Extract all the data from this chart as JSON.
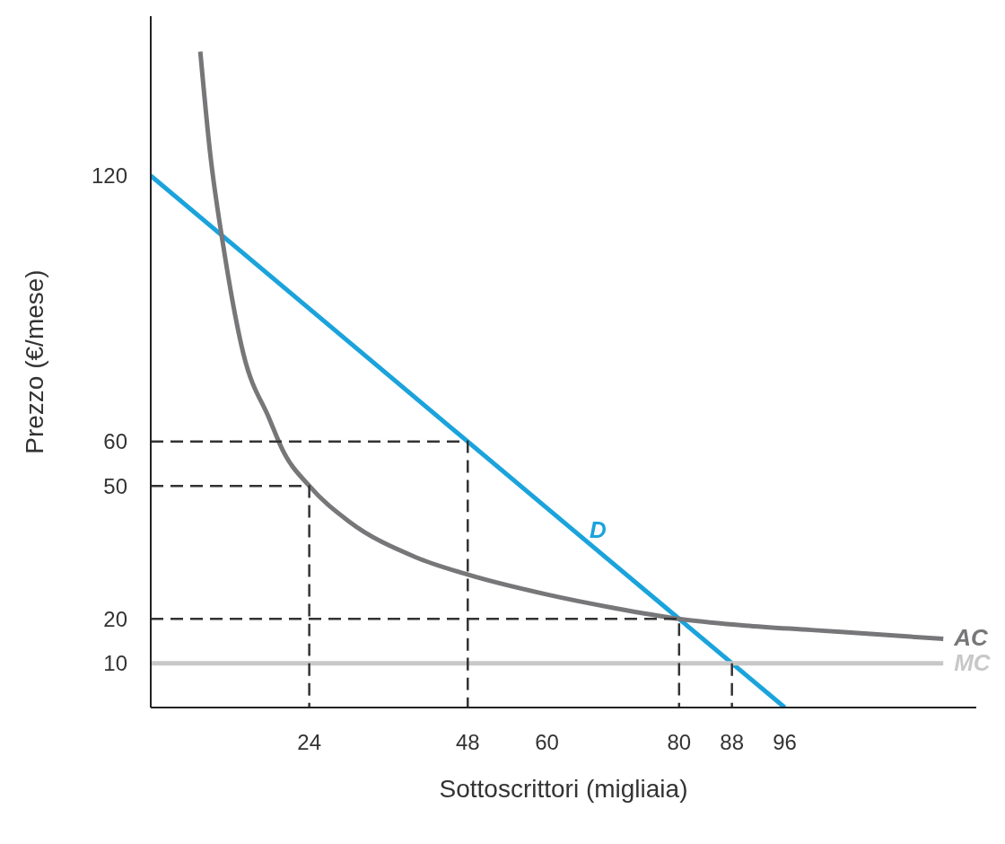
{
  "chart_data": {
    "type": "line",
    "xlabel": "Sottoscrittori (migliaia)",
    "ylabel": "Prezzo (€/mese)",
    "xlim": [
      0,
      125
    ],
    "ylim": [
      0,
      156
    ],
    "xticks": [
      24,
      48,
      60,
      80,
      88,
      96
    ],
    "yticks": [
      10,
      20,
      50,
      60,
      120
    ],
    "grid": false,
    "legend": false,
    "marker": "none",
    "series": [
      {
        "name": "D",
        "color": "#1ba3dc",
        "x": [
          0,
          64,
          96
        ],
        "values": [
          120,
          40,
          0
        ]
      },
      {
        "name": "AC",
        "color": "#77777a",
        "x": [
          7.5,
          9,
          11,
          14,
          18,
          20,
          24,
          30,
          40,
          48,
          60,
          70,
          80,
          90,
          100,
          110,
          120
        ],
        "values": [
          148,
          125,
          104,
          80,
          65,
          58,
          50,
          42,
          34,
          30,
          25.5,
          22.5,
          20,
          18.5,
          17.5,
          16.5,
          15.5
        ]
      },
      {
        "name": "MC",
        "color": "#c8c8c8",
        "x": [
          0,
          120
        ],
        "values": [
          10,
          10
        ]
      },
      {
        "color": "#333333",
        "line_style": "dashed",
        "x": [
          0,
          48,
          48
        ],
        "values": [
          60,
          60,
          0
        ]
      },
      {
        "color": "#333333",
        "line_style": "dashed",
        "x": [
          0,
          24,
          24
        ],
        "values": [
          50,
          50,
          0
        ]
      },
      {
        "color": "#333333",
        "line_style": "dashed",
        "x": [
          0,
          80,
          80
        ],
        "values": [
          20,
          20,
          0
        ]
      },
      {
        "color": "#333333",
        "line_style": "dashed",
        "x": [
          88,
          88
        ],
        "values": [
          10,
          0
        ]
      }
    ]
  }
}
